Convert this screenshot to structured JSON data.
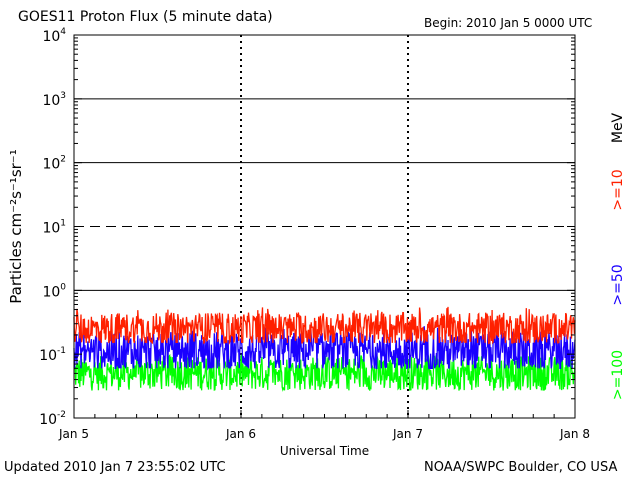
{
  "header": {
    "title": "GOES11 Proton Flux (5 minute data)",
    "begin": "Begin: 2010 Jan 5 0000 UTC"
  },
  "footer": {
    "updated": "Updated 2010 Jan  7 23:55:02 UTC",
    "credit": "NOAA/SWPC Boulder, CO USA"
  },
  "chart_data": {
    "type": "line",
    "title": "GOES11 Proton Flux (5 minute data)",
    "xlabel": "Universal Time",
    "ylabel": "Particles cm⁻²s⁻¹sr⁻¹",
    "yscale": "log",
    "ylim": [
      0.01,
      10000
    ],
    "xlim": [
      "2010-01-05 00:00",
      "2010-01-08 00:00"
    ],
    "x_ticks": [
      "Jan 5",
      "Jan 6",
      "Jan 7",
      "Jan 8"
    ],
    "y_ticks": [
      {
        "base": "10",
        "exp": "-2",
        "value": 0.01
      },
      {
        "base": "10",
        "exp": "-1",
        "value": 0.1
      },
      {
        "base": "10",
        "exp": "0",
        "value": 1
      },
      {
        "base": "10",
        "exp": "1",
        "value": 10
      },
      {
        "base": "10",
        "exp": "2",
        "value": 100
      },
      {
        "base": "10",
        "exp": "3",
        "value": 1000
      },
      {
        "base": "10",
        "exp": "4",
        "value": 10000
      }
    ],
    "thresholds": [
      {
        "value": 10,
        "style": "dashed"
      },
      {
        "value": 1,
        "style": "solid"
      },
      {
        "value": 100,
        "style": "solid"
      },
      {
        "value": 1000,
        "style": "solid"
      }
    ],
    "unit_label": "MeV",
    "series": [
      {
        "name": ">=10",
        "color": "#ff2000",
        "typical": 0.25,
        "min": 0.15,
        "max": 0.55
      },
      {
        "name": ">=50",
        "color": "#1a00ff",
        "typical": 0.11,
        "min": 0.06,
        "max": 0.3
      },
      {
        "name": ">=100",
        "color": "#00ff00",
        "typical": 0.05,
        "min": 0.025,
        "max": 0.1
      }
    ],
    "grid": true
  }
}
